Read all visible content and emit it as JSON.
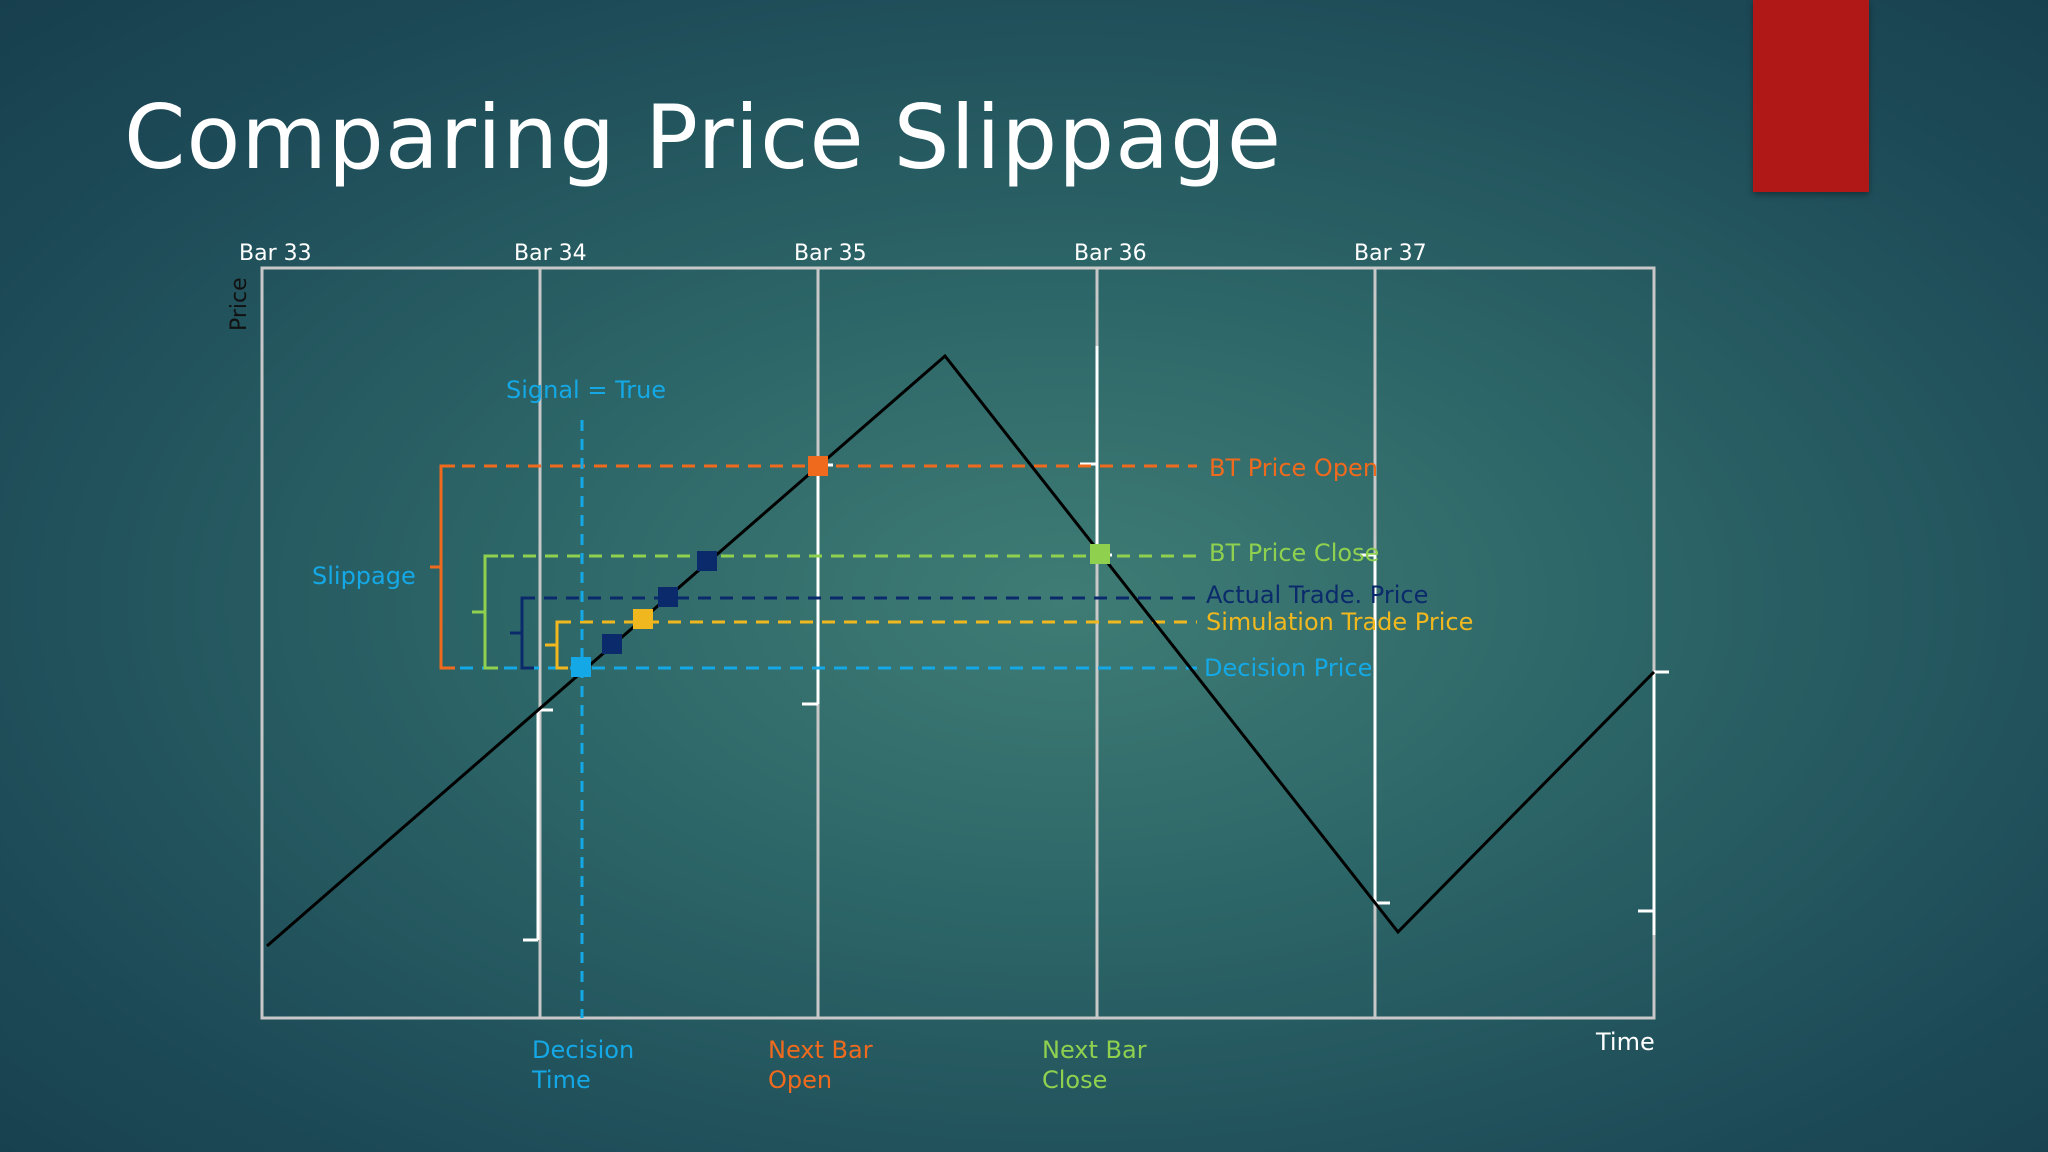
{
  "slide": {
    "title": "Comparing Price Slippage"
  },
  "diagram": {
    "bars": [
      "Bar 33",
      "Bar 34",
      "Bar 35",
      "Bar 36",
      "Bar 37"
    ],
    "axis_price_label": "Price",
    "axis_time_label": "Time",
    "signal_label": "Signal = True",
    "slippage_label": "Slippage",
    "price_levels": [
      {
        "key": "bt_open",
        "label": "BT Price Open",
        "color": "#f06a1e"
      },
      {
        "key": "bt_close",
        "label": "BT Price Close",
        "color": "#8fd14f"
      },
      {
        "key": "actual",
        "label": "Actual Trade. Price",
        "color": "#0b2a6b"
      },
      {
        "key": "simulation",
        "label": "Simulation Trade Price",
        "color": "#f0b81e"
      },
      {
        "key": "decision",
        "label": "Decision Price",
        "color": "#14a9e6"
      }
    ],
    "time_labels": [
      {
        "key": "decision_time",
        "lines": [
          "Decision",
          "Time"
        ],
        "color": "#14a9e6"
      },
      {
        "key": "next_bar_open",
        "lines": [
          "Next Bar",
          "Open"
        ],
        "color": "#f06a1e"
      },
      {
        "key": "next_bar_close",
        "lines": [
          "Next Bar",
          "Close"
        ],
        "color": "#8fd14f"
      }
    ],
    "colors": {
      "price_line": "#000000",
      "grid": "#c8c8c8",
      "bar_ticks": "#ffffff",
      "signal": "#14a9e6",
      "slippage_label": "#14a9e6"
    }
  }
}
